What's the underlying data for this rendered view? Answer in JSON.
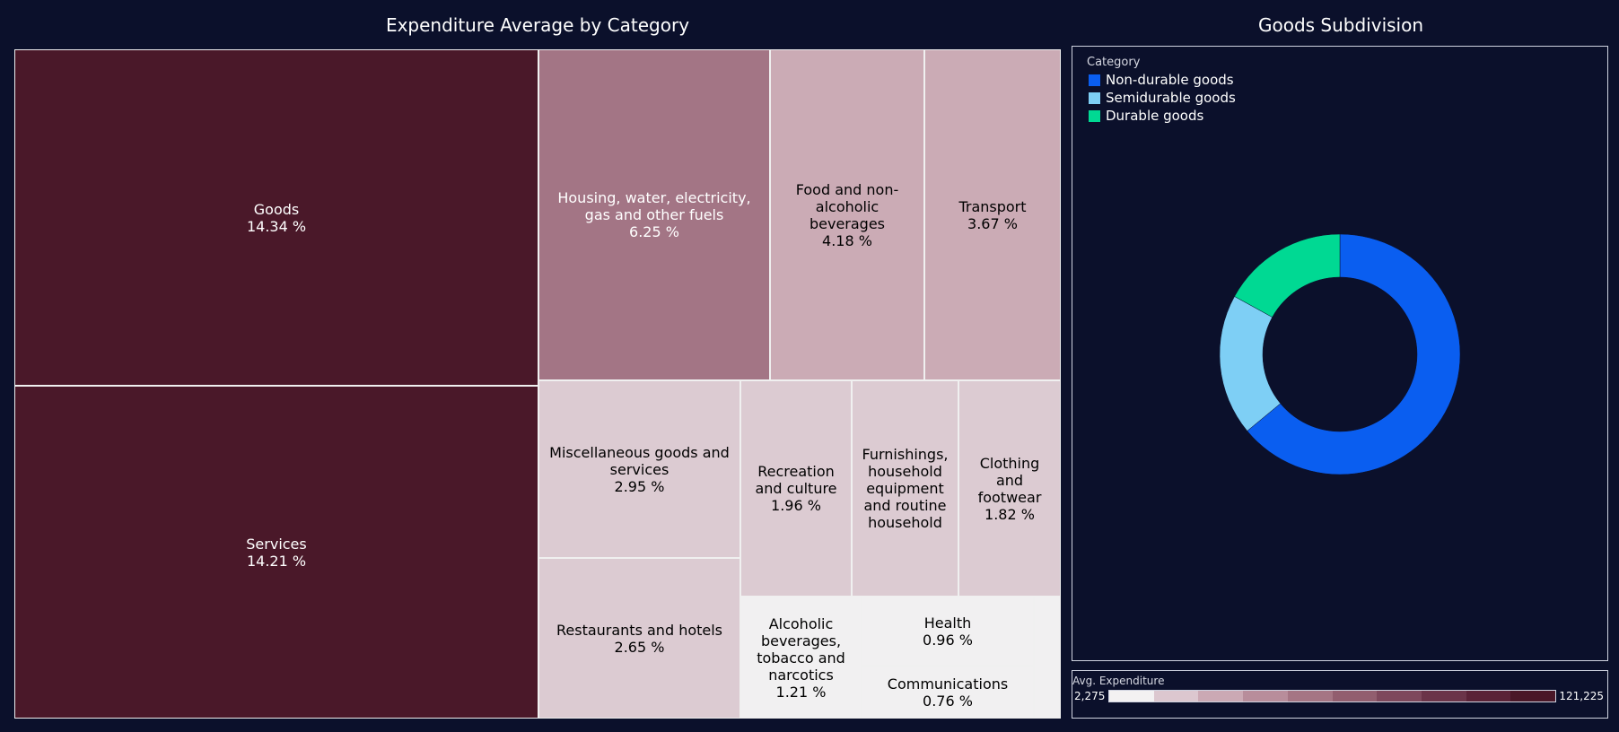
{
  "treemap_title": "Expenditure Average by Category",
  "donut_title": "Goods Subdivision",
  "legend": {
    "title": "Category",
    "items": [
      {
        "label": "Non-durable goods",
        "color": "#0a5ef0"
      },
      {
        "label": "Semidurable goods",
        "color": "#7ecff5"
      },
      {
        "label": "Durable goods",
        "color": "#00d993"
      }
    ]
  },
  "color_scale": {
    "title": "Avg. Expenditure",
    "min_label": "2,275",
    "max_label": "121,225",
    "colors": [
      "#f3f1f2",
      "#dcc7cf",
      "#cba9b4",
      "#b88d9b",
      "#a57584",
      "#925e6f",
      "#7e485c",
      "#6b3449",
      "#5a2237",
      "#4a1728"
    ]
  },
  "chart_data": [
    {
      "type": "treemap",
      "title": "Expenditure Average by Category",
      "colorscale_label": "Avg. Expenditure",
      "colorscale_range": [
        2275,
        121225
      ],
      "tiles": [
        {
          "label": "Goods",
          "percent": "14.34 %",
          "value": 14.34,
          "fill": "#4a1829",
          "text_color": "#ffffff"
        },
        {
          "label": "Services",
          "percent": "14.21 %",
          "value": 14.21,
          "fill": "#4a1829",
          "text_color": "#ffffff"
        },
        {
          "label": "Housing, water, electricity, gas and other fuels",
          "percent": "6.25 %",
          "value": 6.25,
          "fill": "#a37585",
          "text_color": "#ffffff"
        },
        {
          "label": "Food and non-alcoholic beverages",
          "percent": "4.18 %",
          "value": 4.18,
          "fill": "#cbabb5",
          "text_color": "#000000"
        },
        {
          "label": "Transport",
          "percent": "3.67 %",
          "value": 3.67,
          "fill": "#cbabb5",
          "text_color": "#000000"
        },
        {
          "label": "Miscellaneous goods and services",
          "percent": "2.95 %",
          "value": 2.95,
          "fill": "#dccbd2",
          "text_color": "#000000"
        },
        {
          "label": "Recreation and culture",
          "percent": "1.96 %",
          "value": 1.96,
          "fill": "#dccbd2",
          "text_color": "#000000"
        },
        {
          "label": "Furnishings, household equipment and routine household",
          "percent": "",
          "value": null,
          "fill": "#dccbd2",
          "text_color": "#000000"
        },
        {
          "label": "Clothing and footwear",
          "percent": "1.82 %",
          "value": 1.82,
          "fill": "#dccbd2",
          "text_color": "#000000"
        },
        {
          "label": "Restaurants and hotels",
          "percent": "2.65 %",
          "value": 2.65,
          "fill": "#dccbd2",
          "text_color": "#000000"
        },
        {
          "label": "Alcoholic beverages, tobacco and narcotics",
          "percent": "1.21 %",
          "value": 1.21,
          "fill": "#f1f0f1",
          "text_color": "#000000"
        },
        {
          "label": "Health",
          "percent": "0.96 %",
          "value": 0.96,
          "fill": "#f1f0f1",
          "text_color": "#000000"
        },
        {
          "label": "Communications",
          "percent": "0.76 %",
          "value": 0.76,
          "fill": "#f1f0f1",
          "text_color": "#000000"
        },
        {
          "label": "",
          "percent": "",
          "value": null,
          "fill": "#f1f0f1",
          "text_color": "#000000"
        }
      ]
    },
    {
      "type": "pie",
      "title": "Goods Subdivision",
      "hole": true,
      "series": [
        {
          "name": "Non-durable goods",
          "value": 64,
          "color": "#0a5ef0"
        },
        {
          "name": "Semidurable goods",
          "value": 19,
          "color": "#7ecff5"
        },
        {
          "name": "Durable goods",
          "value": 17,
          "color": "#00d993"
        }
      ]
    }
  ]
}
